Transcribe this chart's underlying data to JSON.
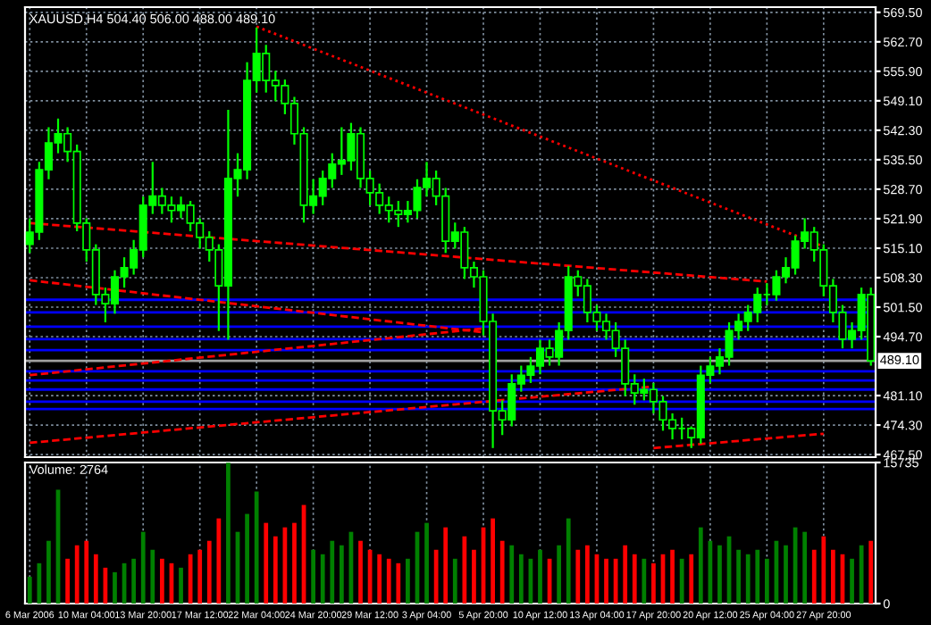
{
  "chart_data": [
    {
      "type": "candlestick",
      "title": "XAUUSD,H4 504.40 506.00 488.00 489.10",
      "categories": [
        "6 Mar 2006",
        null,
        null,
        null,
        null,
        null,
        "10 Mar 04:00",
        null,
        null,
        null,
        null,
        null,
        "13 Mar 20:00",
        null,
        null,
        null,
        null,
        null,
        "17 Mar 12:00",
        null,
        null,
        null,
        null,
        null,
        "22 Mar 04:00",
        null,
        null,
        null,
        null,
        null,
        "24 Mar 20:00",
        null,
        null,
        null,
        null,
        null,
        "29 Mar 12:00",
        null,
        null,
        null,
        null,
        null,
        "3 Apr 04:00",
        null,
        null,
        null,
        null,
        null,
        "5 Apr 20:00",
        null,
        null,
        null,
        null,
        null,
        "10 Apr 12:00",
        null,
        null,
        null,
        null,
        null,
        "13 Apr 04:00",
        null,
        null,
        null,
        null,
        null,
        "17 Apr 20:00",
        null,
        null,
        null,
        null,
        null,
        "20 Apr 12:00",
        null,
        null,
        null,
        null,
        null,
        "25 Apr 04:00",
        null,
        null,
        null,
        null,
        null,
        "27 Apr 20:00",
        null,
        null,
        null,
        null,
        null
      ],
      "series": [
        {
          "type": "line",
          "color": "#ff0000",
          "line_style": "dotted",
          "x": [
            "22 Mar 04:00",
            "27 Apr 20:00"
          ],
          "values": [
            566.2,
            515.5
          ]
        },
        {
          "type": "line",
          "color": "#ff0000",
          "line_style": "dashed",
          "x": [
            "6 Mar 2006",
            "25 Apr 04:00"
          ],
          "values": [
            520.9,
            507.4
          ]
        },
        {
          "type": "line",
          "color": "#ff0000",
          "line_style": "dashed",
          "x": [
            "6 Mar 2006",
            "5 Apr 20:00"
          ],
          "values": [
            507.7,
            495.7
          ]
        },
        {
          "type": "line",
          "color": "#ff0000",
          "line_style": "dashed",
          "x": [
            "6 Mar 2006",
            "5 Apr 20:00"
          ],
          "values": [
            485.8,
            496.6
          ]
        },
        {
          "type": "line",
          "color": "#ff0000",
          "line_style": "dashed",
          "x": [
            "6 Mar 2006",
            "17 Apr 20:00"
          ],
          "values": [
            470.2,
            483.2
          ]
        },
        {
          "type": "line",
          "color": "#ff0000",
          "line_style": "dashed",
          "x": [
            "17 Apr 20:00",
            "27 Apr 20:00"
          ],
          "values": [
            469.0,
            472.3
          ]
        },
        {
          "type": "candlestick",
          "color": "#00ff00",
          "ohlc": [
            [
              516.0,
              522,
              514,
              518.8
            ],
            [
              518.8,
              535,
              517,
              533.2
            ],
            [
              533.2,
              543,
              531,
              539.4
            ],
            [
              539.4,
              545,
              537,
              541.5
            ],
            [
              541.5,
              543,
              535,
              537.4
            ],
            [
              537.4,
              539,
              519,
              520.9
            ],
            [
              520.9,
              522,
              512,
              514.7
            ],
            [
              514.7,
              516,
              502,
              504.4
            ],
            [
              504.4,
              506,
              498,
              502.3
            ],
            [
              502.3,
              510,
              500,
              508.5
            ],
            [
              508.5,
              513,
              506,
              510.6
            ],
            [
              510.6,
              517,
              509,
              514.7
            ],
            [
              514.7,
              527,
              513,
              525.0
            ],
            [
              525.0,
              535,
              523,
              527.1
            ],
            [
              527.1,
              529,
              523,
              525.0
            ],
            [
              525.0,
              527,
              521,
              523.8
            ],
            [
              523.8,
              527,
              522,
              525.0
            ],
            [
              525.0,
              526,
              519,
              520.9
            ],
            [
              520.9,
              522,
              515,
              517.6
            ],
            [
              517.6,
              519,
              512,
              514.7
            ],
            [
              514.7,
              516,
              496,
              506.4
            ],
            [
              506.4,
              547,
              494,
              531.2
            ],
            [
              531.2,
              537,
              527,
              533.2
            ],
            [
              533.2,
              558,
              531,
              553.8
            ],
            [
              553.8,
              566,
              551,
              560.0
            ],
            [
              560.0,
              562,
              551,
              553.8
            ],
            [
              553.8,
              556,
              549,
              552.6
            ],
            [
              552.6,
              554,
              546,
              548.5
            ],
            [
              548.5,
              550,
              539,
              541.5
            ],
            [
              541.5,
              543,
              521,
              525.0
            ],
            [
              525.0,
              531,
              523,
              527.1
            ],
            [
              527.1,
              533,
              525,
              531.2
            ],
            [
              531.2,
              537,
              529,
              534.5
            ],
            [
              534.5,
              543,
              532,
              535.3
            ],
            [
              535.3,
              544,
              533,
              541.5
            ],
            [
              541.5,
              543,
              529,
              531.2
            ],
            [
              531.2,
              533,
              525,
              527.9
            ],
            [
              527.9,
              530,
              523,
              525.0
            ],
            [
              525.0,
              527,
              521,
              523.8
            ],
            [
              523.8,
              526,
              520,
              522.9
            ],
            [
              522.9,
              526,
              521,
              523.8
            ],
            [
              523.8,
              531,
              522,
              529.1
            ],
            [
              529.1,
              535,
              527,
              531.2
            ],
            [
              531.2,
              533,
              525,
              527.1
            ],
            [
              527.1,
              529,
              514,
              516.7
            ],
            [
              516.7,
              521,
              515,
              518.8
            ],
            [
              518.8,
              520,
              508,
              510.6
            ],
            [
              510.6,
              512,
              506,
              508.5
            ],
            [
              508.5,
              510,
              495,
              498.2
            ],
            [
              498.2,
              500,
              469,
              477.6
            ],
            [
              477.6,
              480,
              472,
              475.5
            ],
            [
              475.5,
              486,
              474,
              483.8
            ],
            [
              483.8,
              488,
              482,
              485.8
            ],
            [
              485.8,
              490,
              484,
              487.9
            ],
            [
              487.9,
              494,
              486,
              492.0
            ],
            [
              492.0,
              494,
              488,
              490.0
            ],
            [
              490.0,
              498,
              488,
              496.1
            ],
            [
              496.1,
              511,
              494,
              508.5
            ],
            [
              508.5,
              510,
              504,
              506.4
            ],
            [
              506.4,
              508,
              498,
              500.3
            ],
            [
              500.3,
              502,
              496,
              498.2
            ],
            [
              498.2,
              500,
              494,
              496.1
            ],
            [
              496.1,
              498,
              490,
              492.0
            ],
            [
              492.0,
              494,
              481,
              483.8
            ],
            [
              483.8,
              486,
              479,
              481.7
            ],
            [
              481.7,
              485,
              480,
              482.5
            ],
            [
              482.5,
              484,
              477,
              479.7
            ],
            [
              479.7,
              481,
              473,
              475.5
            ],
            [
              475.5,
              477,
              471,
              473.5
            ],
            [
              473.5,
              476,
              471,
              473.5
            ],
            [
              473.5,
              474,
              469,
              471.4
            ],
            [
              471.4,
              488,
              470,
              485.8
            ],
            [
              485.8,
              490,
              484,
              487.9
            ],
            [
              487.9,
              492,
              486,
              490.0
            ],
            [
              490.0,
              498,
              488,
              496.1
            ],
            [
              496.1,
              500,
              494,
              498.2
            ],
            [
              498.2,
              502,
              496,
              500.3
            ],
            [
              500.3,
              506,
              498,
              504.4
            ],
            [
              504.4,
              507,
              502,
              504.4
            ],
            [
              504.4,
              510,
              503,
              508.5
            ],
            [
              508.5,
              513,
              507,
              510.6
            ],
            [
              510.6,
              518,
              509,
              516.7
            ],
            [
              516.7,
              522,
              515,
              518.8
            ],
            [
              518.8,
              520,
              512,
              514.7
            ],
            [
              514.7,
              516,
              504,
              506.4
            ],
            [
              506.4,
              508,
              498,
              500.3
            ],
            [
              500.3,
              502,
              492,
              494.1
            ],
            [
              494.1,
              498,
              492,
              496.1
            ],
            [
              496.1,
              506,
              494,
              504.4
            ],
            [
              504.4,
              506,
              488,
              489.1
            ]
          ]
        }
      ],
      "ylim": [
        466.9,
        570.7
      ],
      "yticks": [
        {
          "value": 569.5,
          "label": "569.50"
        },
        {
          "value": 562.7,
          "label": "562.70"
        },
        {
          "value": 555.9,
          "label": "555.90"
        },
        {
          "value": 549.1,
          "label": "549.10"
        },
        {
          "value": 542.3,
          "label": "542.30"
        },
        {
          "value": 535.5,
          "label": "535.50"
        },
        {
          "value": 528.7,
          "label": "528.70"
        },
        {
          "value": 521.9,
          "label": "521.90"
        },
        {
          "value": 515.1,
          "label": "515.10"
        },
        {
          "value": 508.3,
          "label": "508.30"
        },
        {
          "value": 501.5,
          "label": "501.50"
        },
        {
          "value": 494.7,
          "label": "494.70"
        },
        {
          "value": 481.1,
          "label": "481.10"
        },
        {
          "value": 474.3,
          "label": "474.30"
        },
        {
          "value": 467.5,
          "label": "467.50"
        }
      ],
      "ref_lines": [
        {
          "axis": "y",
          "value": 503.2,
          "color": "#0000ff"
        },
        {
          "axis": "y",
          "value": 500.3,
          "color": "#0000ff"
        },
        {
          "axis": "y",
          "value": 497.0,
          "color": "#0000ff"
        },
        {
          "axis": "y",
          "value": 494.1,
          "color": "#0000ff"
        },
        {
          "axis": "y",
          "value": 491.6,
          "color": "#0000ff"
        },
        {
          "axis": "y",
          "value": 486.7,
          "color": "#0000ff"
        },
        {
          "axis": "y",
          "value": 484.6,
          "color": "#0000ff"
        },
        {
          "axis": "y",
          "value": 482.5,
          "color": "#0000ff"
        },
        {
          "axis": "y",
          "value": 479.7,
          "color": "#0000ff"
        },
        {
          "axis": "y",
          "value": 478.0,
          "color": "#0000ff"
        },
        {
          "axis": "y",
          "value": 489.1,
          "color": "#a0a0a0",
          "label": "489.10"
        }
      ],
      "grid": true,
      "tick_labels": "y"
    },
    {
      "type": "bar",
      "categories": [
        "6 Mar 2006",
        null,
        null,
        null,
        null,
        null,
        "10 Mar 04:00",
        null,
        null,
        null,
        null,
        null,
        "13 Mar 20:00",
        null,
        null,
        null,
        null,
        null,
        "17 Mar 12:00",
        null,
        null,
        null,
        null,
        null,
        "22 Mar 04:00",
        null,
        null,
        null,
        null,
        null,
        "24 Mar 20:00",
        null,
        null,
        null,
        null,
        null,
        "29 Mar 12:00",
        null,
        null,
        null,
        null,
        null,
        "3 Apr 04:00",
        null,
        null,
        null,
        null,
        null,
        "5 Apr 20:00",
        null,
        null,
        null,
        null,
        null,
        "10 Apr 12:00",
        null,
        null,
        null,
        null,
        null,
        "13 Apr 04:00",
        null,
        null,
        null,
        null,
        null,
        "17 Apr 20:00",
        null,
        null,
        null,
        null,
        null,
        "20 Apr 12:00",
        null,
        null,
        null,
        null,
        null,
        "25 Apr 04:00",
        null,
        null,
        null,
        null,
        null,
        "27 Apr 20:00",
        null,
        null,
        null,
        null,
        null
      ],
      "values": [
        3000,
        4500,
        7000,
        12700,
        5000,
        6500,
        7000,
        5500,
        4000,
        3500,
        4500,
        5000,
        8000,
        6000,
        5000,
        4500,
        4000,
        5500,
        6000,
        7000,
        9500,
        15700,
        8000,
        10000,
        12500,
        9000,
        7500,
        8500,
        9000,
        11000,
        6000,
        5500,
        7000,
        6500,
        8000,
        7000,
        6000,
        5500,
        5000,
        4500,
        5000,
        8000,
        9000,
        6000,
        8500,
        5000,
        7500,
        6000,
        8500,
        9500,
        7000,
        6500,
        5500,
        5000,
        6000,
        5000,
        6500,
        9500,
        6000,
        6500,
        5500,
        5000,
        5000,
        6500,
        5500,
        5000,
        4500,
        5500,
        6000,
        5000,
        5500,
        8500,
        7000,
        6500,
        7500,
        6000,
        5500,
        6000,
        5000,
        7000,
        6500,
        8500,
        8000,
        6000,
        7500,
        6000,
        5500,
        5000,
        6500,
        7000
      ],
      "colors": [
        "#008000",
        "#008000",
        "#008000",
        "#008000",
        "#ff0000",
        "#ff0000",
        "#ff0000",
        "#ff0000",
        "#ff0000",
        "#008000",
        "#008000",
        "#008000",
        "#008000",
        "#008000",
        "#ff0000",
        "#ff0000",
        "#008000",
        "#ff0000",
        "#ff0000",
        "#ff0000",
        "#ff0000",
        "#008000",
        "#008000",
        "#008000",
        "#008000",
        "#ff0000",
        "#ff0000",
        "#ff0000",
        "#ff0000",
        "#ff0000",
        "#008000",
        "#008000",
        "#008000",
        "#008000",
        "#008000",
        "#ff0000",
        "#ff0000",
        "#ff0000",
        "#ff0000",
        "#ff0000",
        "#008000",
        "#008000",
        "#008000",
        "#ff0000",
        "#ff0000",
        "#008000",
        "#ff0000",
        "#ff0000",
        "#ff0000",
        "#ff0000",
        "#ff0000",
        "#008000",
        "#008000",
        "#008000",
        "#008000",
        "#ff0000",
        "#008000",
        "#008000",
        "#ff0000",
        "#ff0000",
        "#ff0000",
        "#ff0000",
        "#ff0000",
        "#ff0000",
        "#ff0000",
        "#008000",
        "#ff0000",
        "#ff0000",
        "#ff0000",
        "#008000",
        "#ff0000",
        "#008000",
        "#008000",
        "#008000",
        "#008000",
        "#008000",
        "#008000",
        "#008000",
        "#008000",
        "#008000",
        "#008000",
        "#008000",
        "#008000",
        "#ff0000",
        "#ff0000",
        "#ff0000",
        "#ff0000",
        "#008000",
        "#008000",
        "#ff0000"
      ],
      "ylim": [
        0,
        15735
      ],
      "yticks": [
        0,
        15735
      ],
      "grid": "x",
      "annotations": [
        "Volume: 2764"
      ]
    }
  ]
}
